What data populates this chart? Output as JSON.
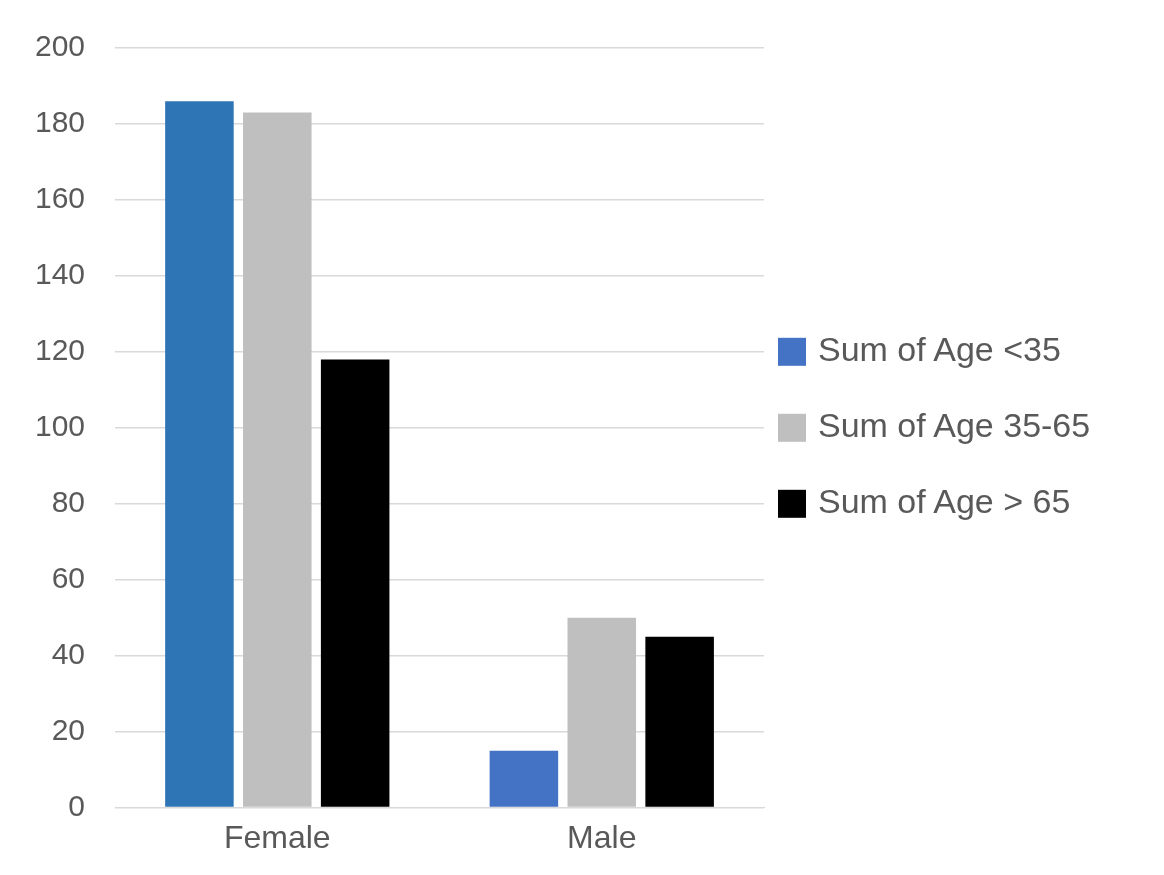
{
  "chart_data": {
    "type": "bar",
    "categories": [
      "Female",
      "Male"
    ],
    "series": [
      {
        "name": "Sum of Age <35",
        "color": "#4472c4",
        "colors": [
          "#2e75b6",
          "#4472c4"
        ],
        "values": [
          186,
          15
        ]
      },
      {
        "name": "Sum of Age 35-65",
        "color": "#bfbfbf",
        "values": [
          183,
          50
        ]
      },
      {
        "name": "Sum of Age > 65",
        "color": "#000000",
        "values": [
          118,
          45
        ]
      }
    ],
    "ylim": [
      0,
      200
    ],
    "yticks": [
      0,
      20,
      40,
      60,
      80,
      100,
      120,
      140,
      160,
      180,
      200
    ],
    "grid": "y",
    "legend": "right"
  }
}
